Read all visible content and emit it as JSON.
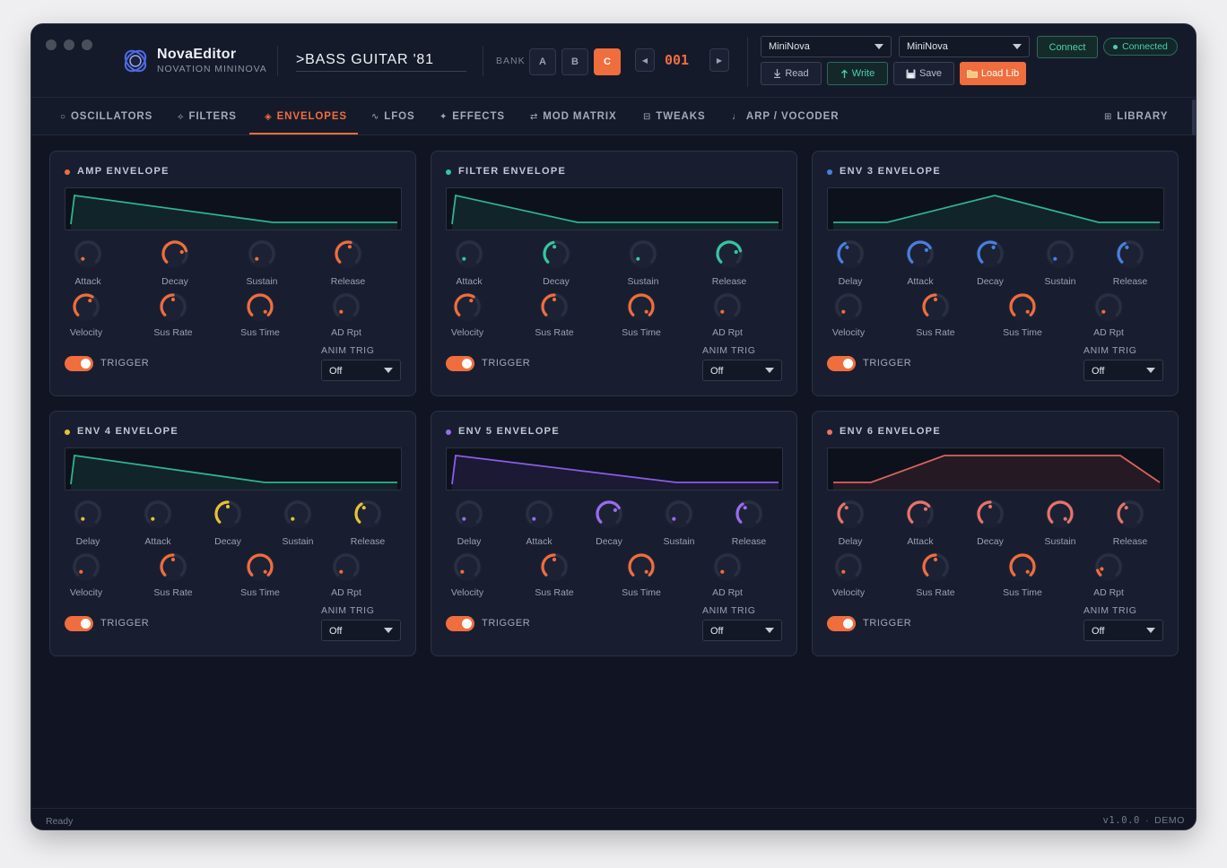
{
  "app": {
    "name": "NovaEditor",
    "subtitle": "NOVATION MININOVA"
  },
  "patch": {
    "name": ">BASS GUITAR '81",
    "bank_label": "BANK",
    "banks": [
      "A",
      "B",
      "C"
    ],
    "active_bank": "C",
    "number": "001",
    "prev_icon": "◀",
    "next_icon": "▶"
  },
  "midi": {
    "input": "MiniNova",
    "output": "MiniNova",
    "connect_label": "Connect",
    "status": "Connected"
  },
  "toolbar": {
    "read": "Read",
    "write": "Write",
    "save": "Save",
    "load_lib": "Load Lib"
  },
  "tabs": [
    {
      "icon": "○",
      "label": "OSCILLATORS"
    },
    {
      "icon": "⟡",
      "label": "FILTERS"
    },
    {
      "icon": "◈",
      "label": "ENVELOPES"
    },
    {
      "icon": "∿",
      "label": "LFOS"
    },
    {
      "icon": "✦",
      "label": "EFFECTS"
    },
    {
      "icon": "⇄",
      "label": "MOD MATRIX"
    },
    {
      "icon": "⊟",
      "label": "TWEAKS"
    },
    {
      "icon": "♩",
      "label": "ARP / VOCODER"
    },
    {
      "icon": "⊞",
      "label": "LIBRARY"
    }
  ],
  "active_tab": "ENVELOPES",
  "envelopes": [
    {
      "title": "AMP ENVELOPE",
      "color": "#f06d3e",
      "graph_color": "#2fb38e",
      "row1": [
        {
          "label": "Attack",
          "value": 0.0,
          "color": "#f06d3e"
        },
        {
          "label": "Decay",
          "value": 0.78,
          "color": "#f06d3e"
        },
        {
          "label": "Sustain",
          "value": 0.0,
          "color": "#f06d3e"
        },
        {
          "label": "Release",
          "value": 0.55,
          "color": "#f06d3e"
        }
      ],
      "row2": [
        {
          "label": "Velocity",
          "value": 0.62,
          "color": "#f06d3e"
        },
        {
          "label": "Sus Rate",
          "value": 0.5,
          "color": "#f06d3e"
        },
        {
          "label": "Sus Time",
          "value": 1.0,
          "color": "#f06d3e"
        },
        {
          "label": "AD Rpt",
          "value": 0.0,
          "color": "#f06d3e"
        }
      ],
      "trigger_label": "TRIGGER",
      "trigger_on": true,
      "anim_label": "ANIM TRIG",
      "anim_value": "Off"
    },
    {
      "title": "FILTER ENVELOPE",
      "color": "#35c6a0",
      "graph_color": "#2fb38e",
      "row1": [
        {
          "label": "Attack",
          "value": 0.0,
          "color": "#35c6a0"
        },
        {
          "label": "Decay",
          "value": 0.45,
          "color": "#35c6a0"
        },
        {
          "label": "Sustain",
          "value": 0.0,
          "color": "#35c6a0"
        },
        {
          "label": "Release",
          "value": 0.78,
          "color": "#35c6a0"
        }
      ],
      "row2": [
        {
          "label": "Velocity",
          "value": 0.62,
          "color": "#f06d3e"
        },
        {
          "label": "Sus Rate",
          "value": 0.5,
          "color": "#f06d3e"
        },
        {
          "label": "Sus Time",
          "value": 1.0,
          "color": "#f06d3e"
        },
        {
          "label": "AD Rpt",
          "value": 0.0,
          "color": "#f06d3e"
        }
      ],
      "trigger_label": "TRIGGER",
      "trigger_on": true,
      "anim_label": "ANIM TRIG",
      "anim_value": "Off"
    },
    {
      "title": "ENV 3 ENVELOPE",
      "color": "#4a7fe0",
      "graph_color": "#2fb38e",
      "row1": [
        {
          "label": "Delay",
          "value": 0.4,
          "color": "#4a7fe0"
        },
        {
          "label": "Attack",
          "value": 0.72,
          "color": "#4a7fe0"
        },
        {
          "label": "Decay",
          "value": 0.6,
          "color": "#4a7fe0"
        },
        {
          "label": "Sustain",
          "value": 0.0,
          "color": "#4a7fe0"
        },
        {
          "label": "Release",
          "value": 0.4,
          "color": "#4a7fe0"
        }
      ],
      "row2": [
        {
          "label": "Velocity",
          "value": 0.0,
          "color": "#f06d3e"
        },
        {
          "label": "Sus Rate",
          "value": 0.5,
          "color": "#f06d3e"
        },
        {
          "label": "Sus Time",
          "value": 1.0,
          "color": "#f06d3e"
        },
        {
          "label": "AD Rpt",
          "value": 0.0,
          "color": "#f06d3e"
        }
      ],
      "trigger_label": "TRIGGER",
      "trigger_on": true,
      "anim_label": "ANIM TRIG",
      "anim_value": "Off"
    },
    {
      "title": "ENV 4 ENVELOPE",
      "color": "#e6c23a",
      "graph_color": "#2fb38e",
      "row1": [
        {
          "label": "Delay",
          "value": 0.0,
          "color": "#e6c23a"
        },
        {
          "label": "Attack",
          "value": 0.0,
          "color": "#e6c23a"
        },
        {
          "label": "Decay",
          "value": 0.5,
          "color": "#e6c23a"
        },
        {
          "label": "Sustain",
          "value": 0.0,
          "color": "#e6c23a"
        },
        {
          "label": "Release",
          "value": 0.38,
          "color": "#e6c23a"
        }
      ],
      "row2": [
        {
          "label": "Velocity",
          "value": 0.0,
          "color": "#f06d3e"
        },
        {
          "label": "Sus Rate",
          "value": 0.5,
          "color": "#f06d3e"
        },
        {
          "label": "Sus Time",
          "value": 1.0,
          "color": "#f06d3e"
        },
        {
          "label": "AD Rpt",
          "value": 0.0,
          "color": "#f06d3e"
        }
      ],
      "trigger_label": "TRIGGER",
      "trigger_on": true,
      "anim_label": "ANIM TRIG",
      "anim_value": "Off"
    },
    {
      "title": "ENV 5 ENVELOPE",
      "color": "#9a6cf0",
      "graph_color": "#8a5de6",
      "row1": [
        {
          "label": "Delay",
          "value": 0.0,
          "color": "#9a6cf0"
        },
        {
          "label": "Attack",
          "value": 0.0,
          "color": "#9a6cf0"
        },
        {
          "label": "Decay",
          "value": 0.72,
          "color": "#9a6cf0"
        },
        {
          "label": "Sustain",
          "value": 0.0,
          "color": "#9a6cf0"
        },
        {
          "label": "Release",
          "value": 0.38,
          "color": "#9a6cf0"
        }
      ],
      "row2": [
        {
          "label": "Velocity",
          "value": 0.0,
          "color": "#f06d3e"
        },
        {
          "label": "Sus Rate",
          "value": 0.5,
          "color": "#f06d3e"
        },
        {
          "label": "Sus Time",
          "value": 1.0,
          "color": "#f06d3e"
        },
        {
          "label": "AD Rpt",
          "value": 0.0,
          "color": "#f06d3e"
        }
      ],
      "trigger_label": "TRIGGER",
      "trigger_on": true,
      "anim_label": "ANIM TRIG",
      "anim_value": "Off"
    },
    {
      "title": "ENV 6 ENVELOPE",
      "color": "#e8736b",
      "graph_color": "#d9635e",
      "row1": [
        {
          "label": "Delay",
          "value": 0.38,
          "color": "#e8736b"
        },
        {
          "label": "Attack",
          "value": 0.68,
          "color": "#e8736b"
        },
        {
          "label": "Decay",
          "value": 0.5,
          "color": "#e8736b"
        },
        {
          "label": "Sustain",
          "value": 1.0,
          "color": "#e8736b"
        },
        {
          "label": "Release",
          "value": 0.38,
          "color": "#e8736b"
        }
      ],
      "row2": [
        {
          "label": "Velocity",
          "value": 0.0,
          "color": "#f06d3e"
        },
        {
          "label": "Sus Rate",
          "value": 0.5,
          "color": "#f06d3e"
        },
        {
          "label": "Sus Time",
          "value": 1.0,
          "color": "#f06d3e"
        },
        {
          "label": "AD Rpt",
          "value": 0.1,
          "color": "#f06d3e"
        }
      ],
      "trigger_label": "TRIGGER",
      "trigger_on": true,
      "anim_label": "ANIM TRIG",
      "anim_value": "Off"
    }
  ],
  "status": {
    "left": "Ready",
    "version": "v1.0.0",
    "separator": "·",
    "mode": "DEMO"
  },
  "colors": {
    "accent": "#f06d3e",
    "teal": "#35c6a0",
    "background": "#111523",
    "panel": "#181e2f"
  }
}
